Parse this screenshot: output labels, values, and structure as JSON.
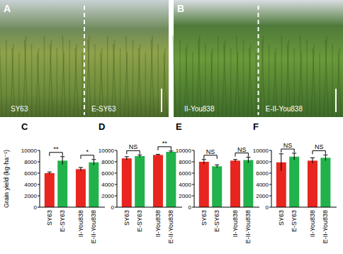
{
  "photos": [
    {
      "label": "A",
      "left": "SY63",
      "right": "E-SY63"
    },
    {
      "label": "B",
      "left": "II-You838",
      "right": "E-II-You838"
    }
  ],
  "chart_data": [
    {
      "type": "bar",
      "title": "C",
      "y_label": "Grain yield (kg·ha⁻¹)",
      "categories": [
        "SY63",
        "E-SY63",
        "II-You838",
        "E-II-You838"
      ],
      "values": [
        6000,
        8200,
        6700,
        7900
      ],
      "errors": [
        200,
        700,
        300,
        500
      ],
      "colors": [
        "#e8261f",
        "#22b24c",
        "#e8261f",
        "#22b24c"
      ],
      "annotations": [
        "**",
        "*"
      ],
      "ylim": [
        0,
        10000
      ],
      "yticks": [
        0,
        2000,
        4000,
        6000,
        8000,
        10000
      ]
    },
    {
      "type": "bar",
      "title": "D",
      "categories": [
        "SY63",
        "E-SY63",
        "II-You838",
        "E-II-You838"
      ],
      "values": [
        8600,
        9000,
        9200,
        9750
      ],
      "errors": [
        300,
        200,
        100,
        150
      ],
      "colors": [
        "#e8261f",
        "#22b24c",
        "#e8261f",
        "#22b24c"
      ],
      "annotations": [
        "NS",
        "**"
      ],
      "ylim": [
        0,
        10000
      ],
      "yticks": [
        0,
        2000,
        4000,
        6000,
        8000,
        10000
      ]
    },
    {
      "type": "bar",
      "title": "E",
      "categories": [
        "SY63",
        "E-SY63",
        "II-You838",
        "E-II-You838"
      ],
      "values": [
        8000,
        7200,
        8200,
        8300
      ],
      "errors": [
        400,
        250,
        200,
        500
      ],
      "colors": [
        "#e8261f",
        "#22b24c",
        "#e8261f",
        "#22b24c"
      ],
      "annotations": [
        "NS",
        "NS"
      ],
      "ylim": [
        0,
        10000
      ],
      "yticks": [
        0,
        2000,
        4000,
        6000,
        8000,
        10000
      ]
    },
    {
      "type": "bar",
      "title": "F",
      "categories": [
        "SY63",
        "E-SY63",
        "II-You838",
        "E-II-You838"
      ],
      "values": [
        7900,
        8900,
        8200,
        8700
      ],
      "errors": [
        1500,
        600,
        500,
        500
      ],
      "colors": [
        "#e8261f",
        "#22b24c",
        "#e8261f",
        "#22b24c"
      ],
      "annotations": [
        "NS",
        "NS"
      ],
      "ylim": [
        0,
        10000
      ],
      "yticks": [
        0,
        2000,
        4000,
        6000,
        8000,
        10000
      ]
    }
  ]
}
